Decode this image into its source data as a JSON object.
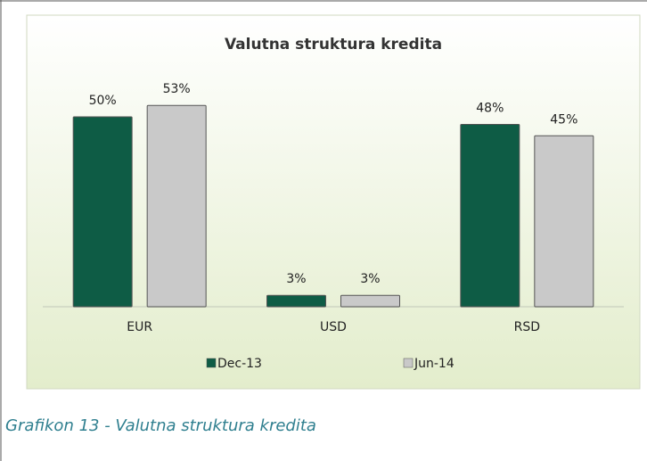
{
  "chart_data": {
    "type": "bar",
    "title": "Valutna struktura kredita",
    "categories": [
      "EUR",
      "USD",
      "RSD"
    ],
    "series": [
      {
        "name": "Dec-13",
        "color": "#0e5c45",
        "values": [
          50,
          3,
          48
        ],
        "value_labels": [
          "50%",
          "3%",
          "48%"
        ]
      },
      {
        "name": "Jun-14",
        "color": "#c9c9c9",
        "values": [
          53,
          3,
          45
        ],
        "value_labels": [
          "53%",
          "3%",
          "45%"
        ]
      }
    ],
    "legend": "bottom"
  },
  "caption": "Grafikon 13 - Valutna struktura kredita"
}
